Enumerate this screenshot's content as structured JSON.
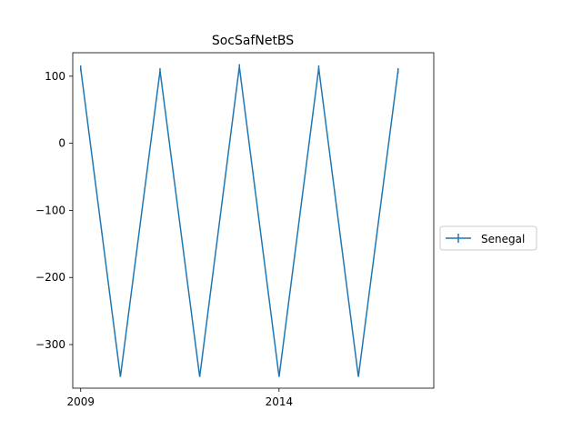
{
  "chart_data": {
    "type": "line",
    "title": "SocSafNetBS",
    "xlabel": "",
    "ylabel": "",
    "x_ticks": [
      2009,
      2014
    ],
    "y_ticks": [
      100,
      0,
      -100,
      -200,
      -300
    ],
    "xlim": [
      2008.8,
      2017.9
    ],
    "ylim": [
      -365,
      135
    ],
    "legend_position": "center-right",
    "colors": {
      "series": "#1f77b4"
    },
    "series": [
      {
        "name": "Senegal",
        "x": [
          2009,
          2010,
          2011,
          2012,
          2013,
          2014,
          2015,
          2016,
          2017
        ],
        "y": [
          112,
          -348,
          108,
          -348,
          114,
          -348,
          112,
          -348,
          108
        ],
        "yerr": [
          4,
          0,
          4,
          0,
          4,
          0,
          4,
          0,
          4
        ]
      }
    ]
  }
}
